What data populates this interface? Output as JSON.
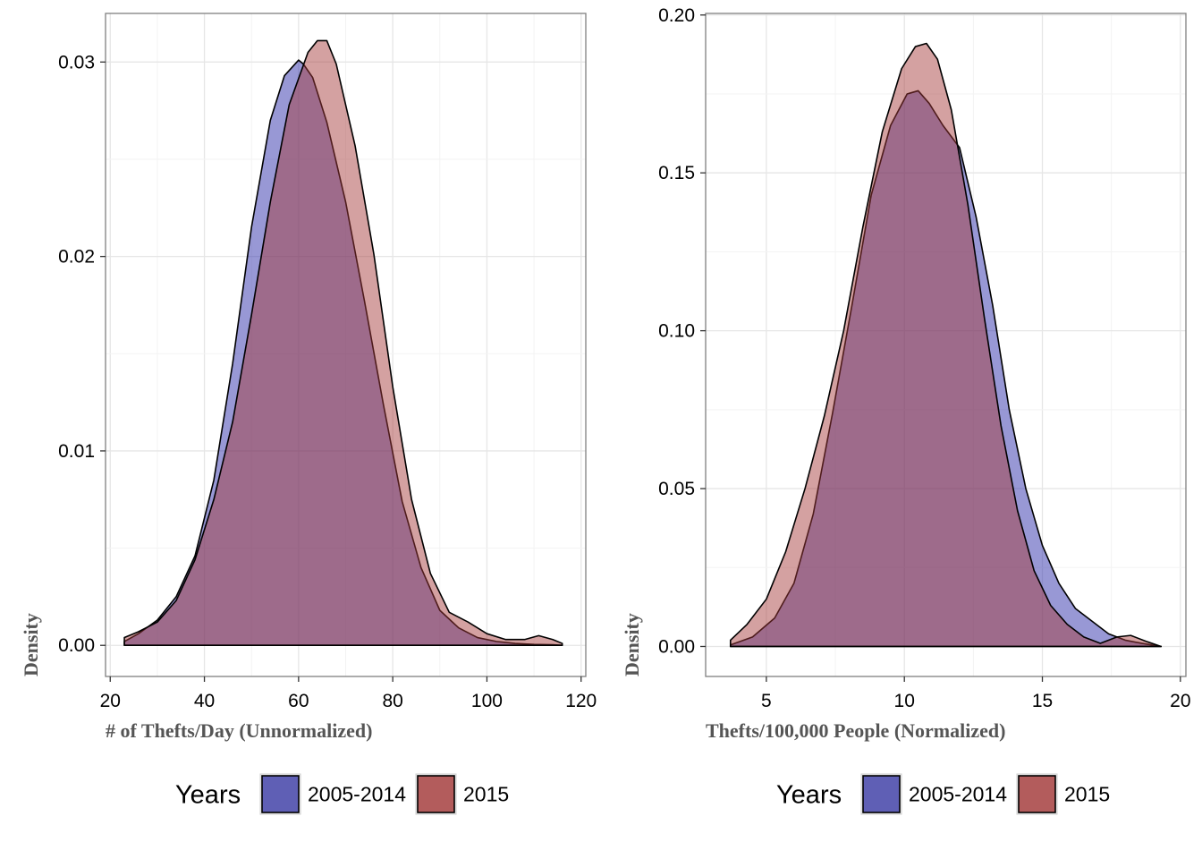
{
  "chart_data": [
    {
      "type": "area",
      "subtype": "density",
      "xlabel": "# of Thefts/Day (Unnormalized)",
      "ylabel": "Density",
      "xlim": [
        19,
        121
      ],
      "ylim": [
        -0.0016,
        0.0325
      ],
      "xticks": [
        20,
        40,
        60,
        80,
        100,
        120
      ],
      "xtick_labels": [
        "20",
        "40",
        "60",
        "80",
        "100",
        "120"
      ],
      "yticks": [
        0.0,
        0.01,
        0.02,
        0.03
      ],
      "ytick_labels": [
        "0.00",
        "0.01",
        "0.02",
        "0.03"
      ],
      "grid": true,
      "legend": {
        "title": "Years",
        "position": "bottom",
        "items": [
          {
            "label": "2005-2014",
            "color": "#5f5fb5"
          },
          {
            "label": "2015",
            "color": "#b35c5c"
          }
        ]
      },
      "series": [
        {
          "name": "2005-2014",
          "color": "#5f5fb5",
          "fill_color": "#2828a8",
          "x": [
            23,
            26,
            30,
            34,
            38,
            42,
            46,
            50,
            54,
            57,
            60,
            61,
            63,
            66,
            70,
            74,
            78,
            82,
            86,
            90,
            94,
            98,
            102,
            106,
            110,
            114,
            116
          ],
          "y": [
            0.0002,
            0.0006,
            0.0013,
            0.0025,
            0.0046,
            0.0085,
            0.0145,
            0.0215,
            0.027,
            0.0293,
            0.0301,
            0.0299,
            0.0292,
            0.0269,
            0.0228,
            0.0177,
            0.0124,
            0.0074,
            0.004,
            0.0018,
            0.0009,
            0.0004,
            0.0002,
            0.0001,
            5e-05,
            3e-05,
            0.0
          ]
        },
        {
          "name": "2015",
          "color": "#b35c5c",
          "fill_color": "#a53a3a",
          "x": [
            23,
            26,
            30,
            34,
            38,
            42,
            46,
            50,
            54,
            58,
            62,
            64,
            66,
            68,
            72,
            76,
            80,
            84,
            88,
            92,
            96,
            100,
            104,
            108,
            111,
            114,
            116
          ],
          "y": [
            0.0004,
            0.0007,
            0.0012,
            0.0023,
            0.0044,
            0.0075,
            0.0115,
            0.017,
            0.0228,
            0.0278,
            0.0305,
            0.0311,
            0.0311,
            0.0299,
            0.0257,
            0.0201,
            0.0133,
            0.0075,
            0.0037,
            0.0017,
            0.0012,
            0.0006,
            0.0003,
            0.0003,
            0.0005,
            0.0003,
            0.0001
          ]
        }
      ]
    },
    {
      "type": "area",
      "subtype": "density",
      "xlabel": "Thefts/100,000 People (Normalized)",
      "ylabel": "Density",
      "xlim": [
        2.8,
        20.2
      ],
      "ylim": [
        -0.0095,
        0.2005
      ],
      "xticks": [
        5,
        10,
        15,
        20
      ],
      "xtick_labels": [
        "5",
        "10",
        "15",
        "20"
      ],
      "yticks": [
        0.0,
        0.05,
        0.1,
        0.15,
        0.2
      ],
      "ytick_labels": [
        "0.00",
        "0.05",
        "0.10",
        "0.15",
        "0.20"
      ],
      "grid": true,
      "legend": {
        "title": "Years",
        "position": "bottom",
        "items": [
          {
            "label": "2005-2014",
            "color": "#5f5fb5"
          },
          {
            "label": "2015",
            "color": "#b35c5c"
          }
        ]
      },
      "series": [
        {
          "name": "2005-2014",
          "color": "#5f5fb5",
          "fill_color": "#2828a8",
          "x": [
            3.7,
            4.5,
            5.3,
            6.0,
            6.7,
            7.4,
            8.1,
            8.8,
            9.5,
            10.1,
            10.5,
            10.9,
            11.4,
            12.0,
            12.6,
            13.2,
            13.8,
            14.4,
            15.0,
            15.6,
            16.2,
            16.8,
            17.4,
            18.0,
            18.6,
            19.3
          ],
          "y": [
            0.0005,
            0.003,
            0.009,
            0.02,
            0.042,
            0.074,
            0.108,
            0.143,
            0.165,
            0.175,
            0.176,
            0.172,
            0.165,
            0.158,
            0.136,
            0.108,
            0.075,
            0.05,
            0.032,
            0.02,
            0.012,
            0.008,
            0.004,
            0.002,
            0.001,
            0.0
          ]
        },
        {
          "name": "2015",
          "color": "#b35c5c",
          "fill_color": "#a53a3a",
          "x": [
            3.7,
            4.3,
            5.0,
            5.7,
            6.4,
            7.1,
            7.8,
            8.5,
            9.2,
            9.9,
            10.4,
            10.8,
            11.2,
            11.7,
            12.3,
            12.9,
            13.5,
            14.1,
            14.7,
            15.3,
            15.9,
            16.5,
            17.1,
            17.7,
            18.2,
            18.8,
            19.3
          ],
          "y": [
            0.002,
            0.007,
            0.015,
            0.03,
            0.05,
            0.073,
            0.1,
            0.133,
            0.163,
            0.183,
            0.19,
            0.191,
            0.186,
            0.17,
            0.14,
            0.104,
            0.07,
            0.043,
            0.024,
            0.013,
            0.007,
            0.003,
            0.001,
            0.003,
            0.0035,
            0.0015,
            0.0
          ]
        }
      ]
    }
  ]
}
